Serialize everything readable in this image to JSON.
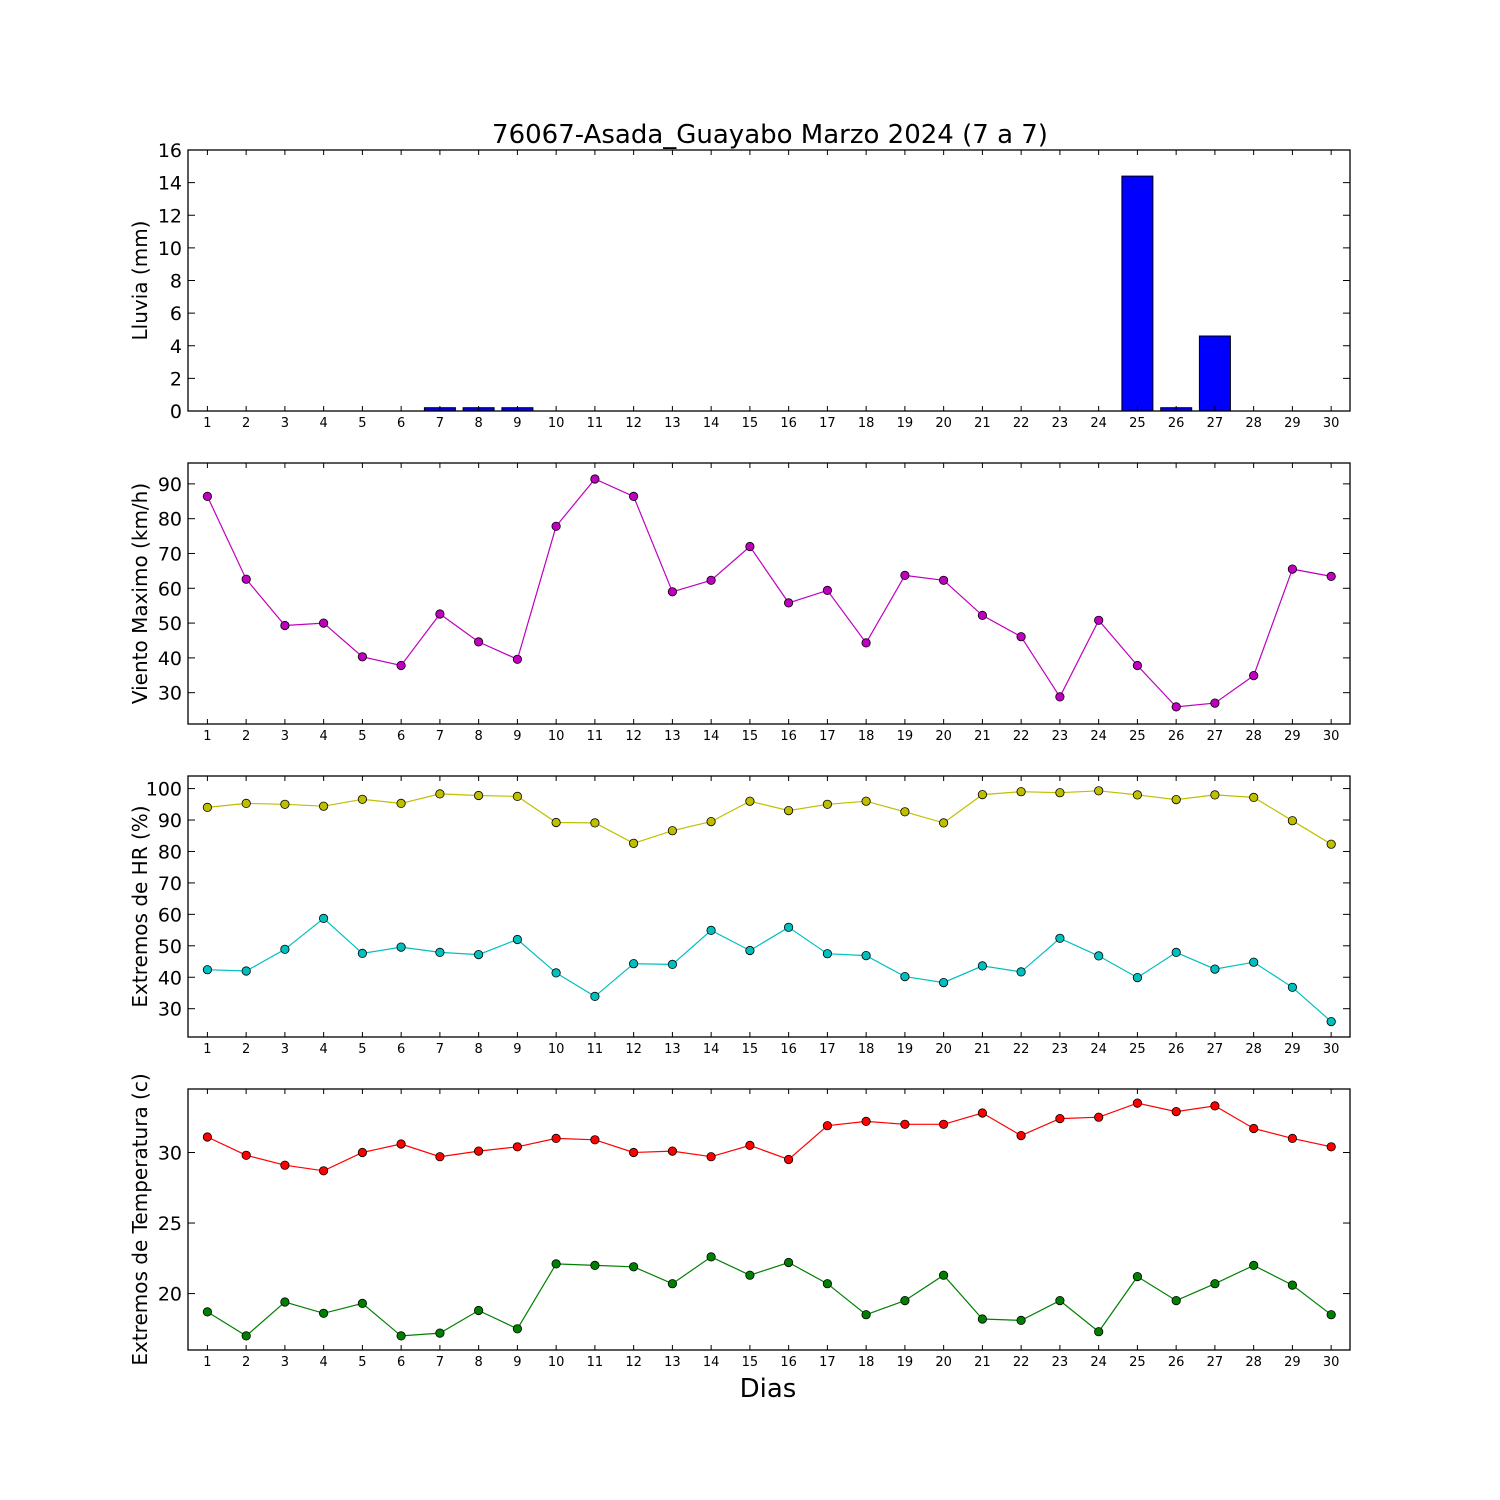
{
  "title": "76067-Asada_Guayabo Marzo 2024  (7 a 7)",
  "xlabel": "Dias",
  "chart_data": [
    {
      "type": "bar",
      "categories": [
        1,
        2,
        3,
        4,
        5,
        6,
        7,
        8,
        9,
        10,
        11,
        12,
        13,
        14,
        15,
        16,
        17,
        18,
        19,
        20,
        21,
        22,
        23,
        24,
        25,
        26,
        27,
        28,
        29,
        30
      ],
      "ylabel": "Lluvia (mm)",
      "ylim": [
        0,
        16
      ],
      "yticks": [
        0,
        2,
        4,
        6,
        8,
        10,
        12,
        14,
        16
      ],
      "series": [
        {
          "color": "#0000ff",
          "values": [
            0,
            0,
            0,
            0,
            0,
            0,
            0.2,
            0.2,
            0.2,
            0,
            0,
            0,
            0,
            0,
            0,
            0,
            0,
            0,
            0,
            0,
            0,
            0,
            0,
            0,
            14.4,
            0.2,
            4.6,
            0,
            0,
            0
          ]
        }
      ]
    },
    {
      "type": "line",
      "categories": [
        1,
        2,
        3,
        4,
        5,
        6,
        7,
        8,
        9,
        10,
        11,
        12,
        13,
        14,
        15,
        16,
        17,
        18,
        19,
        20,
        21,
        22,
        23,
        24,
        25,
        26,
        27,
        28,
        29,
        30
      ],
      "ylabel": "Viento Maximo (km/h)",
      "ylim": [
        21,
        96
      ],
      "yticks": [
        30,
        40,
        50,
        60,
        70,
        80,
        90
      ],
      "series": [
        {
          "color": "#bf00bf",
          "values": [
            86.4,
            62.6,
            49.3,
            50.0,
            40.3,
            37.8,
            52.6,
            44.6,
            39.6,
            77.8,
            91.4,
            86.4,
            59.0,
            62.3,
            72.0,
            55.8,
            59.4,
            44.3,
            63.7,
            62.3,
            52.2,
            46.1,
            28.8,
            50.8,
            37.8,
            25.9,
            27.0,
            34.9,
            65.5,
            63.4
          ]
        }
      ]
    },
    {
      "type": "line",
      "categories": [
        1,
        2,
        3,
        4,
        5,
        6,
        7,
        8,
        9,
        10,
        11,
        12,
        13,
        14,
        15,
        16,
        17,
        18,
        19,
        20,
        21,
        22,
        23,
        24,
        25,
        26,
        27,
        28,
        29,
        30
      ],
      "ylabel": "Extremos de HR (%)",
      "ylim": [
        21,
        104
      ],
      "yticks": [
        30,
        40,
        50,
        60,
        70,
        80,
        90,
        100
      ],
      "series": [
        {
          "color": "#bfbf00",
          "values": [
            94,
            95.3,
            95,
            94.4,
            96.6,
            95.3,
            98.3,
            97.8,
            97.5,
            89.2,
            89.1,
            82.6,
            86.6,
            89.5,
            96,
            93,
            95,
            96,
            92.6,
            89.1,
            98.1,
            99,
            98.7,
            99.3,
            98,
            96.5,
            98,
            97.2,
            89.8,
            82.3
          ]
        },
        {
          "color": "#00bfbf",
          "values": [
            42.4,
            42,
            48.9,
            58.7,
            47.6,
            49.6,
            47.9,
            47.2,
            52,
            41.4,
            33.9,
            44.3,
            44.1,
            54.9,
            48.5,
            55.9,
            47.5,
            46.9,
            40.2,
            38.3,
            43.6,
            41.7,
            52.4,
            46.8,
            39.9,
            47.9,
            42.6,
            44.8,
            36.8,
            25.9
          ]
        }
      ]
    },
    {
      "type": "line",
      "categories": [
        1,
        2,
        3,
        4,
        5,
        6,
        7,
        8,
        9,
        10,
        11,
        12,
        13,
        14,
        15,
        16,
        17,
        18,
        19,
        20,
        21,
        22,
        23,
        24,
        25,
        26,
        27,
        28,
        29,
        30
      ],
      "ylabel": "Extremos de Temperatura (c)",
      "ylim": [
        16,
        34.5
      ],
      "yticks": [
        20,
        25,
        30
      ],
      "series": [
        {
          "color": "#ff0000",
          "values": [
            31.1,
            29.8,
            29.1,
            28.7,
            30.0,
            30.6,
            29.7,
            30.1,
            30.4,
            31.0,
            30.9,
            30.0,
            30.1,
            29.7,
            30.5,
            29.5,
            31.9,
            32.2,
            32.0,
            32.0,
            32.8,
            31.2,
            32.4,
            32.5,
            33.5,
            32.9,
            33.3,
            31.7,
            31.0,
            30.4
          ]
        },
        {
          "color": "#008000",
          "values": [
            18.7,
            17.0,
            19.4,
            18.6,
            19.3,
            17.0,
            17.2,
            18.8,
            17.5,
            22.1,
            22.0,
            21.9,
            20.7,
            22.6,
            21.3,
            22.2,
            20.7,
            18.5,
            19.5,
            21.3,
            18.2,
            18.1,
            19.5,
            17.3,
            21.2,
            19.5,
            20.7,
            22.0,
            20.6,
            18.5
          ]
        }
      ]
    }
  ]
}
